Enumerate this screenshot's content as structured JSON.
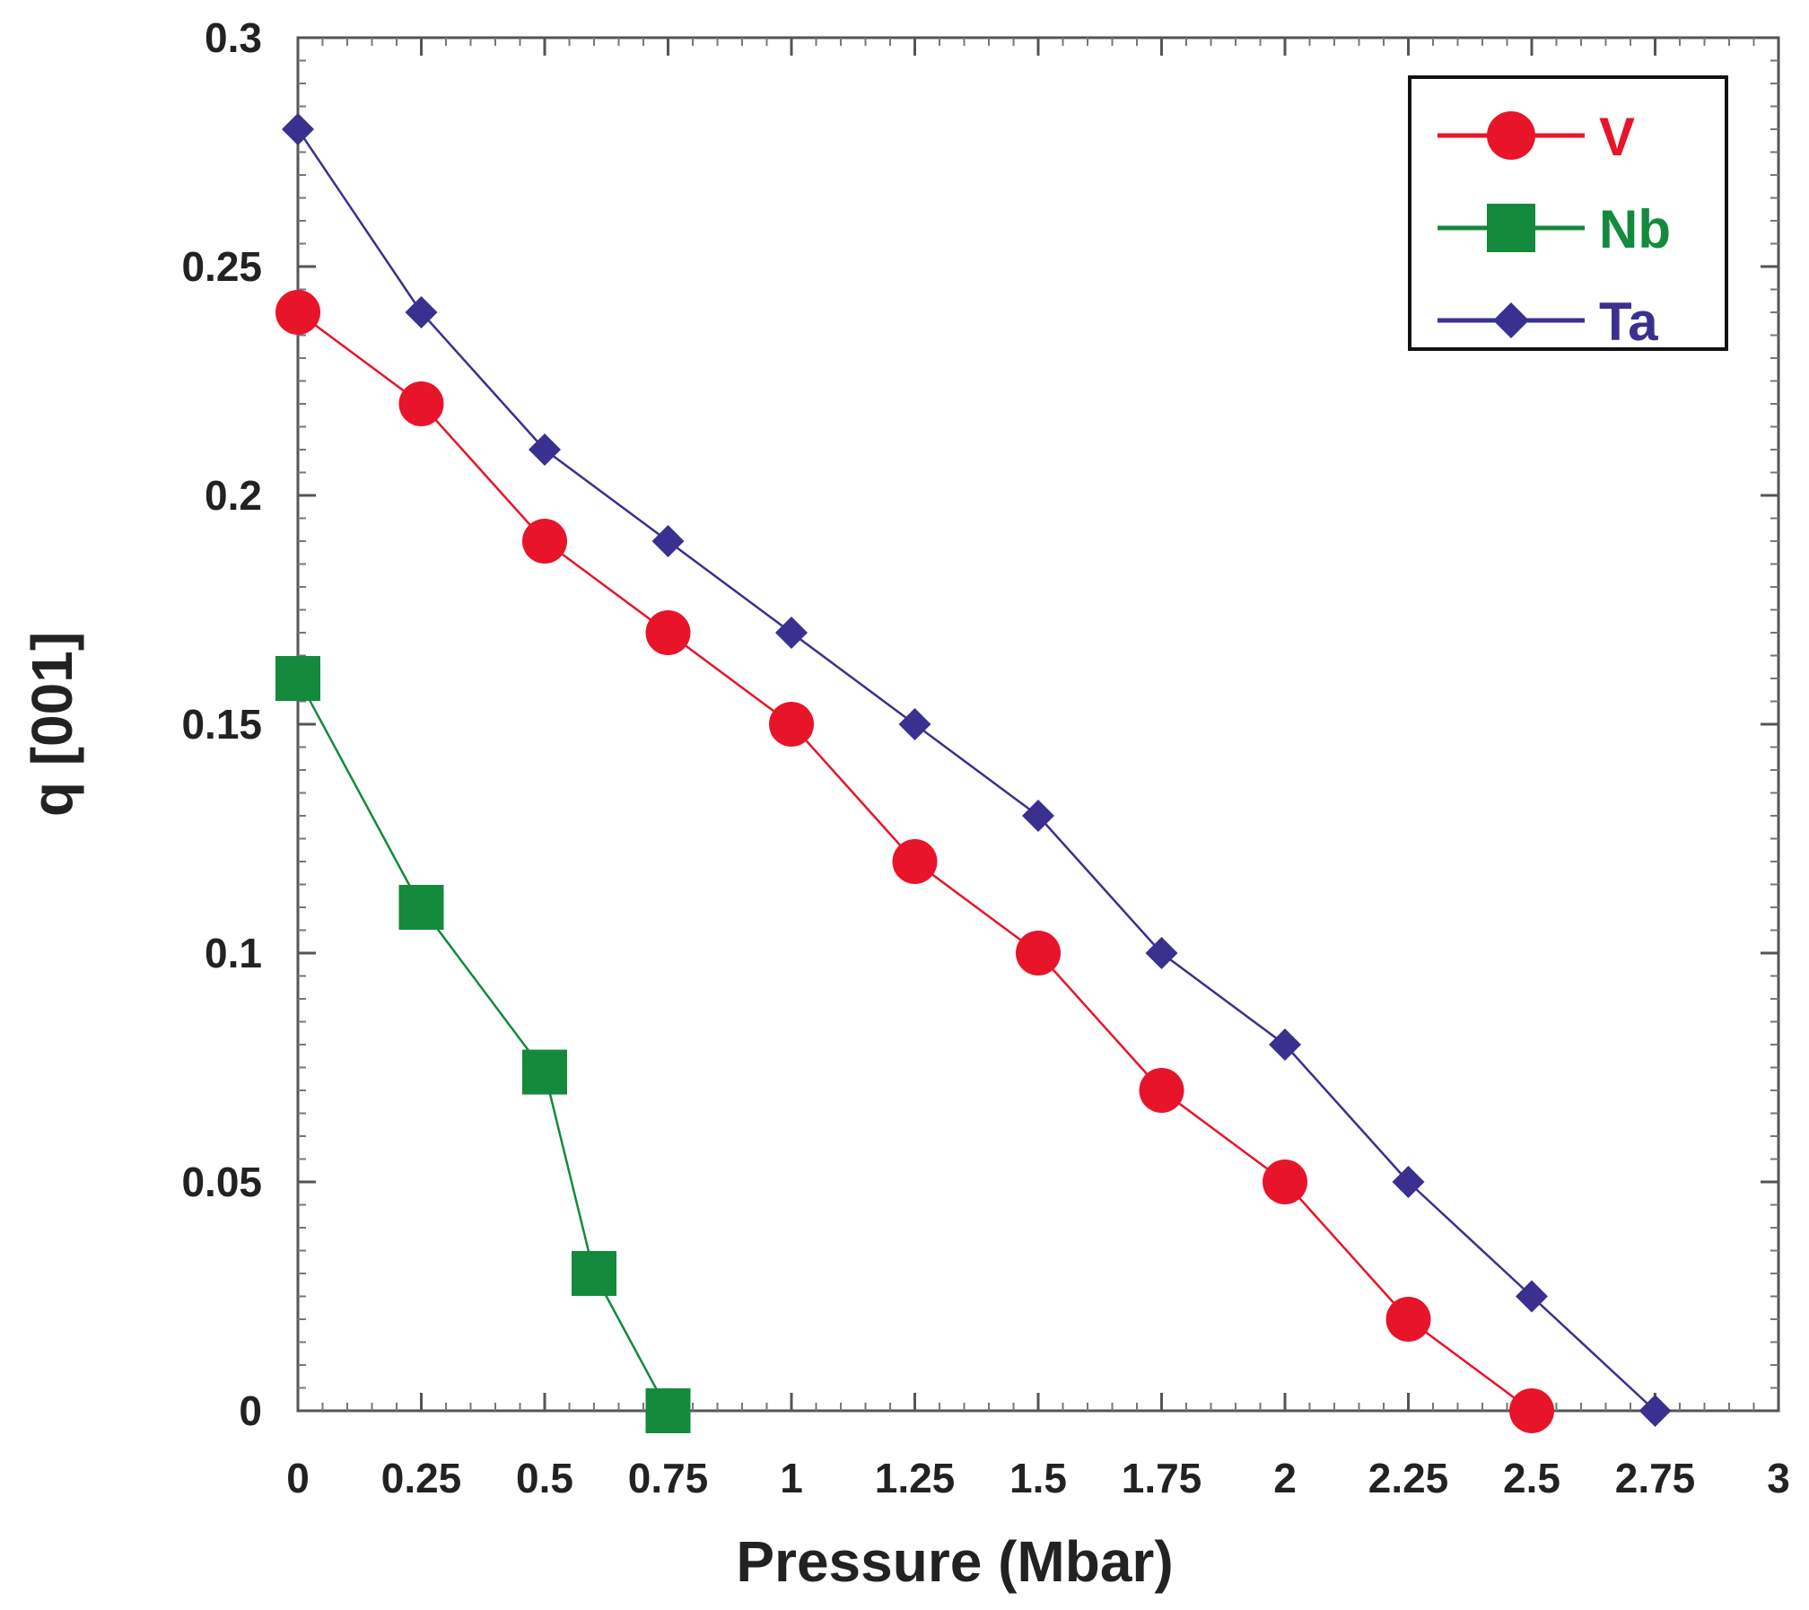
{
  "chart_data": {
    "type": "line",
    "title": "",
    "xlabel": "Pressure (Mbar)",
    "ylabel": "q [001]",
    "xlim": [
      0,
      3
    ],
    "ylim": [
      0,
      0.3
    ],
    "grid": false,
    "legend_position": "top-right",
    "x_ticks": [
      "0",
      "0.25",
      "0.5",
      "0.75",
      "1",
      "1.25",
      "1.5",
      "1.75",
      "2",
      "2.25",
      "2.5",
      "2.75",
      "3"
    ],
    "y_ticks": [
      "0",
      "0.05",
      "0.1",
      "0.15",
      "0.2",
      "0.25",
      "0.3"
    ],
    "series": [
      {
        "name": "V",
        "color": "#e8142a",
        "marker": "circle",
        "x": [
          0,
          0.25,
          0.5,
          0.75,
          1,
          1.25,
          1.5,
          1.75,
          2,
          2.25,
          2.5
        ],
        "y": [
          0.24,
          0.22,
          0.19,
          0.17,
          0.15,
          0.12,
          0.1,
          0.07,
          0.05,
          0.02,
          0.0
        ]
      },
      {
        "name": "Nb",
        "color": "#138a3c",
        "marker": "square",
        "x": [
          0,
          0.25,
          0.5,
          0.6,
          0.75
        ],
        "y": [
          0.16,
          0.11,
          0.074,
          0.03,
          0.0
        ]
      },
      {
        "name": "Ta",
        "color": "#3a3090",
        "marker": "diamond",
        "x": [
          0,
          0.25,
          0.5,
          0.75,
          1,
          1.25,
          1.5,
          1.75,
          2,
          2.25,
          2.5,
          2.75
        ],
        "y": [
          0.28,
          0.24,
          0.21,
          0.19,
          0.17,
          0.15,
          0.13,
          0.1,
          0.08,
          0.05,
          0.025,
          0.0
        ]
      }
    ]
  }
}
